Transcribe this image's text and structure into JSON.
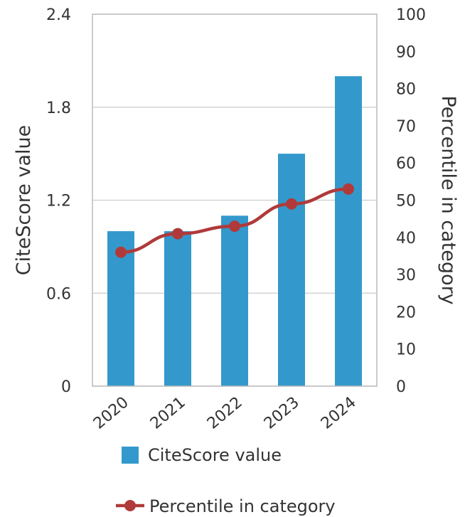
{
  "chart_data": {
    "type": "bar",
    "categories": [
      "2020",
      "2021",
      "2022",
      "2023",
      "2024"
    ],
    "series": [
      {
        "name": "CiteScore value",
        "type": "bar",
        "axis": "left",
        "color": "#3399cc",
        "values": [
          1.0,
          1.0,
          1.1,
          1.5,
          2.0
        ]
      },
      {
        "name": "Percentile in category",
        "type": "line",
        "axis": "right",
        "color": "#b03a3a",
        "values": [
          36,
          41,
          43,
          49,
          53
        ]
      }
    ],
    "ylabel": "CiteScore value",
    "y2label": "Percentile in category",
    "ylim": [
      0,
      2.4
    ],
    "yticks": [
      "0",
      "0.6",
      "1.2",
      "1.8",
      "2.4"
    ],
    "y2lim": [
      0,
      100
    ],
    "y2ticks": [
      "0",
      "10",
      "20",
      "30",
      "40",
      "50",
      "60",
      "70",
      "80",
      "90",
      "100"
    ],
    "grid": "horizontal",
    "legend_position": "bottom",
    "frame_color": "#bbbbbb"
  }
}
